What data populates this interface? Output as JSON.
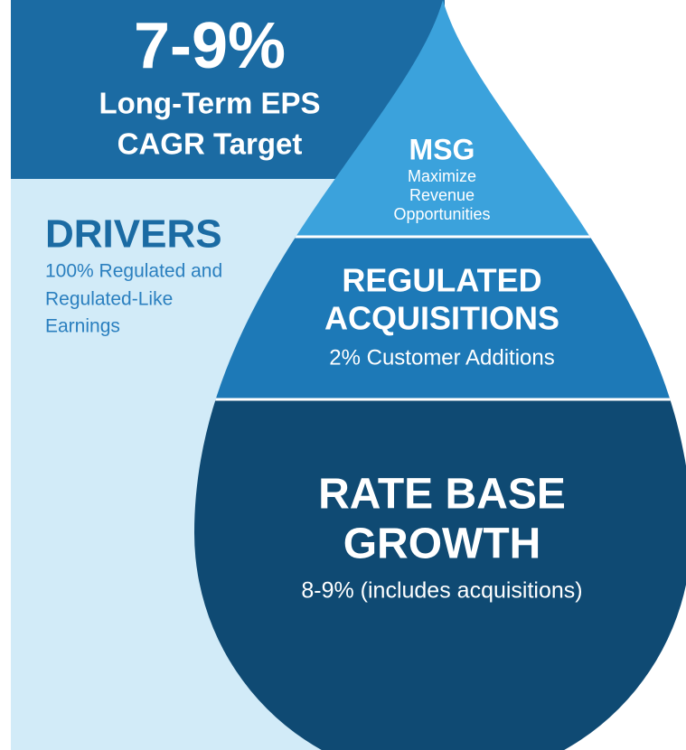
{
  "header": {
    "value": "7-9%",
    "label": [
      "Long-Term EPS",
      "CAGR Target"
    ]
  },
  "drivers": {
    "title": "DRIVERS",
    "text": [
      "100% Regulated and",
      "Regulated-Like",
      "Earnings"
    ]
  },
  "sections": [
    {
      "title": [
        "MSG"
      ],
      "text": [
        "Maximize",
        "Revenue",
        "Opportunities"
      ]
    },
    {
      "title": [
        "REGULATED",
        "ACQUISITIONS"
      ],
      "text": [
        "2% Customer Additions"
      ]
    },
    {
      "title": [
        "RATE BASE",
        "GROWTH"
      ],
      "text": [
        "8-9% (includes acquisitions)"
      ]
    }
  ]
}
